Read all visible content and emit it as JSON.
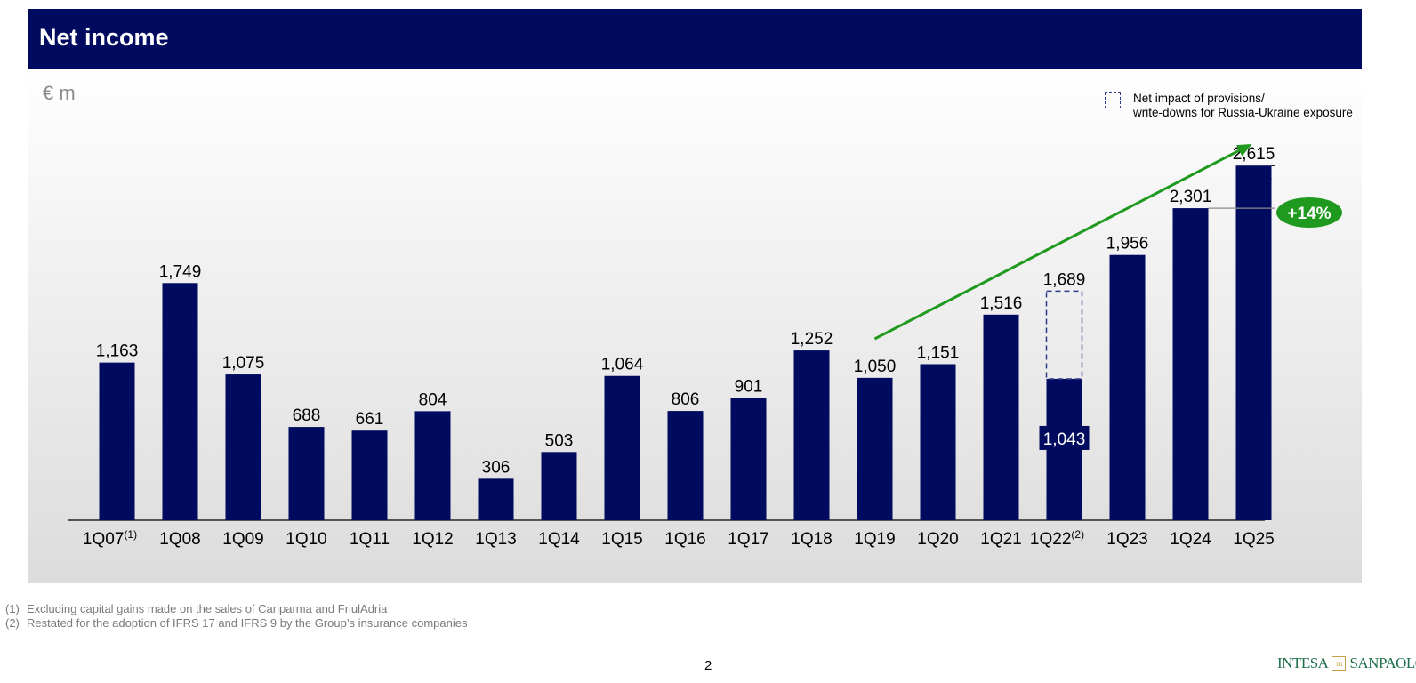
{
  "header": {
    "title": "Net income"
  },
  "unit": "€ m",
  "legend": {
    "line1": "Net impact of provisions/",
    "line2": "write-downs for Russia-Ukraine exposure"
  },
  "growth_badge": "+14%",
  "footnotes": [
    {
      "num": "(1)",
      "text": "Excluding capital gains made on the sales of Cariparma and FriulAdria"
    },
    {
      "num": "(2)",
      "text": "Restated for the adoption of IFRS 17 and IFRS 9 by the Group’s insurance companies"
    }
  ],
  "page_number": "2",
  "logo": {
    "left": "INTESA",
    "mark": "m",
    "right": "SANPAOLO"
  },
  "colors": {
    "bar": "#000a5e",
    "trend": "#1f9a1f",
    "badge": "#1f9a1f",
    "dashed": "#2e3a8c"
  },
  "chart_data": {
    "type": "bar",
    "categories": [
      "1Q07",
      "1Q08",
      "1Q09",
      "1Q10",
      "1Q11",
      "1Q12",
      "1Q13",
      "1Q14",
      "1Q15",
      "1Q16",
      "1Q17",
      "1Q18",
      "1Q19",
      "1Q20",
      "1Q21",
      "1Q22",
      "1Q23",
      "1Q24",
      "1Q25"
    ],
    "category_superscripts": [
      "(1)",
      "",
      "",
      "",
      "",
      "",
      "",
      "",
      "",
      "",
      "",
      "",
      "",
      "",
      "",
      "(2)",
      "",
      "",
      ""
    ],
    "values": [
      1163,
      1749,
      1075,
      688,
      661,
      804,
      306,
      503,
      1064,
      806,
      901,
      1252,
      1050,
      1151,
      1516,
      1043,
      1956,
      2301,
      2615
    ],
    "value_labels": [
      "1,163",
      "1,749",
      "1,075",
      "688",
      "661",
      "804",
      "306",
      "503",
      "1,064",
      "806",
      "901",
      "1,252",
      "1,050",
      "1,151",
      "1,516",
      "1,043",
      "1,956",
      "2,301",
      "2,615"
    ],
    "stacked_dashed": {
      "category": "1Q22",
      "base": 1043,
      "total": 1689,
      "total_label": "1,689"
    },
    "trend_arrow": {
      "from_category": "1Q19",
      "to_category": "1Q25"
    },
    "highlight": {
      "from": "1Q24",
      "to": "1Q25",
      "label": "+14%"
    },
    "ylim": [
      0,
      3300
    ]
  }
}
